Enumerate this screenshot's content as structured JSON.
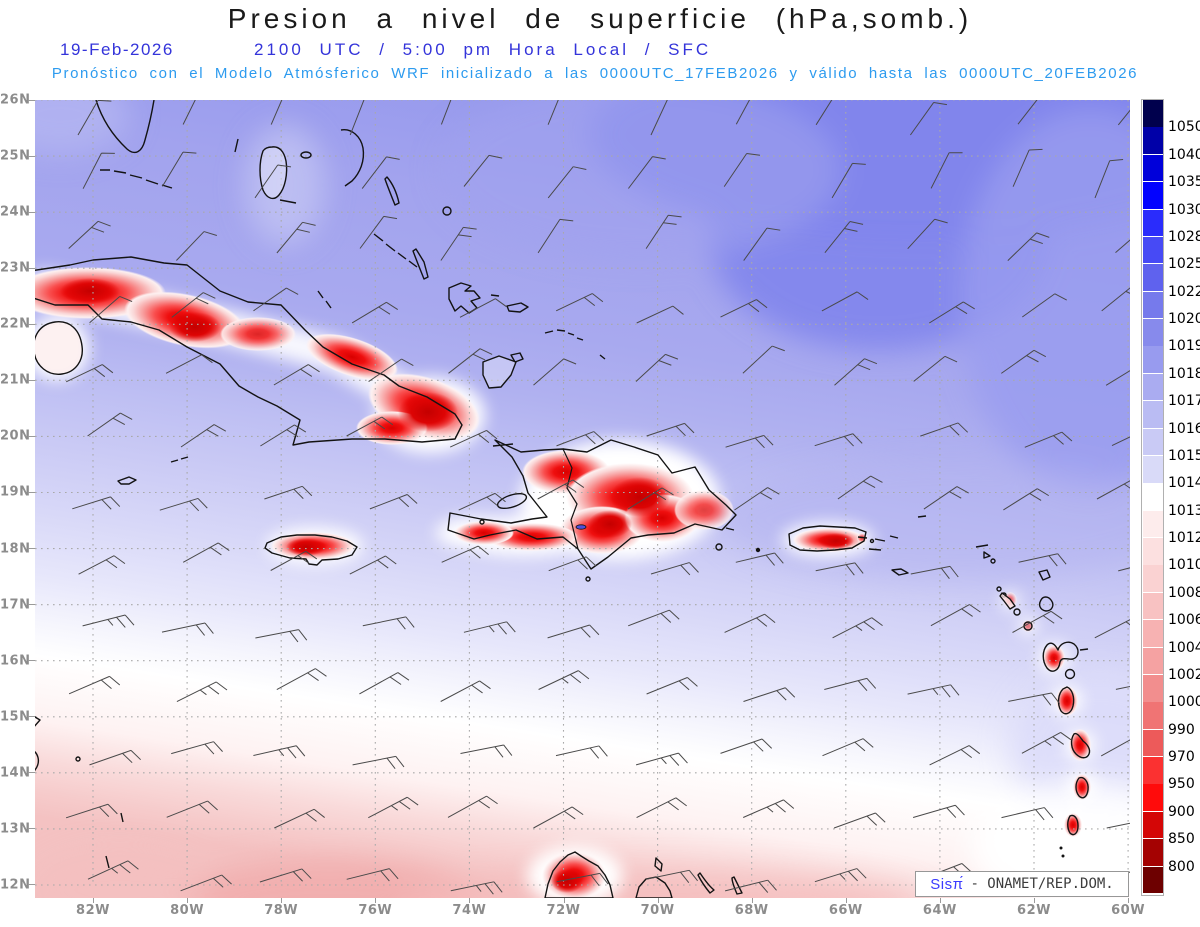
{
  "header": {
    "title": "Presion a nivel de superficie (hPa,somb.)",
    "date": "19-Feb-2026",
    "valid_time": "2100 UTC / 5:00 pm Hora Local / SFC",
    "forecast_note": "Pronóstico con el Modelo Atmósferico WRF inicializado a las 0000UTC_17FEB2026 y válido hasta las  0000UTC_20FEB2026"
  },
  "credit": {
    "brand": "Sisπ́",
    "org": "- ONAMET/REP.DOM."
  },
  "axes": {
    "lat_labels": [
      "26N",
      "25N",
      "24N",
      "23N",
      "22N",
      "21N",
      "20N",
      "19N",
      "18N",
      "17N",
      "16N",
      "15N",
      "14N",
      "13N",
      "12N"
    ],
    "lon_labels": [
      "82W",
      "80W",
      "78W",
      "76W",
      "74W",
      "72W",
      "70W",
      "68W",
      "66W",
      "64W",
      "62W",
      "60W"
    ]
  },
  "colorbar": {
    "unit": "hPa",
    "labels": [
      "1050",
      "1040",
      "1035",
      "1030",
      "1028",
      "1025",
      "1022",
      "1020",
      "1019",
      "1018",
      "1017",
      "1016",
      "1015",
      "1014",
      "1013",
      "1012",
      "1010",
      "1008",
      "1006",
      "1004",
      "1002",
      "1000",
      "990",
      "970",
      "950",
      "900",
      "850",
      "800"
    ],
    "colors": [
      "#00004d",
      "#0000a8",
      "#0000da",
      "#0202ff",
      "#2a2cfc",
      "#474af5",
      "#5f62ee",
      "#767aec",
      "#878aec",
      "#989bef",
      "#aaacf1",
      "#babcf3",
      "#c9caf5",
      "#d9daf8",
      "#ffffff",
      "#fdecec",
      "#fce0e0",
      "#fad2d2",
      "#f8c2c2",
      "#f7b2b2",
      "#f5a2a2",
      "#f28e8e",
      "#f07474",
      "#ed5a5a",
      "#fb3131",
      "#ff0b0b",
      "#d40606",
      "#a40202",
      "#6d0000"
    ]
  },
  "chart_data": {
    "type": "filled-contour-map",
    "variable": "Presión a nivel de superficie",
    "unit": "hPa",
    "model": "WRF",
    "initialized": "0000UTC_17FEB2026",
    "valid_until": "0000UTC_20FEB2026",
    "valid_at": "19-Feb-2026 2100 UTC / 5:00 pm Hora Local / SFC",
    "lat_range": [
      12,
      26
    ],
    "lon_range": [
      -83.2,
      -59.9
    ],
    "grid": {
      "lat_step_deg": 1,
      "lon_step_deg": 2,
      "style": "dotted"
    },
    "levels_hpa": [
      800,
      850,
      900,
      950,
      970,
      990,
      1000,
      1002,
      1004,
      1006,
      1008,
      1010,
      1012,
      1013,
      1014,
      1015,
      1016,
      1017,
      1018,
      1019,
      1020,
      1022,
      1025,
      1028,
      1030,
      1035,
      1040,
      1050
    ],
    "field_summary": [
      {
        "region": "Atlántico al noreste del dominio",
        "pressure_hpa": [
          1019,
          1022
        ]
      },
      {
        "region": "aguas centrales (Bahamas a Puerto Rico)",
        "pressure_hpa": [
          1015,
          1018
        ]
      },
      {
        "region": "franja 14N-16N",
        "pressure_hpa": [
          1013,
          1014
        ]
      },
      {
        "region": "Caribe suroeste (hacia 12N)",
        "pressure_hpa": [
          1006,
          1012
        ]
      },
      {
        "region": "interior de islas: Cuba, La Española, Jamaica, Puerto Rico, Antillas Menores, Guajira (sombreado rojo)",
        "pressure_hpa": [
          990,
          1004
        ]
      }
    ],
    "wind_barbs": {
      "description": "vientos alisios del E-ENE",
      "typical_speed_kt": [
        5,
        15
      ]
    }
  }
}
